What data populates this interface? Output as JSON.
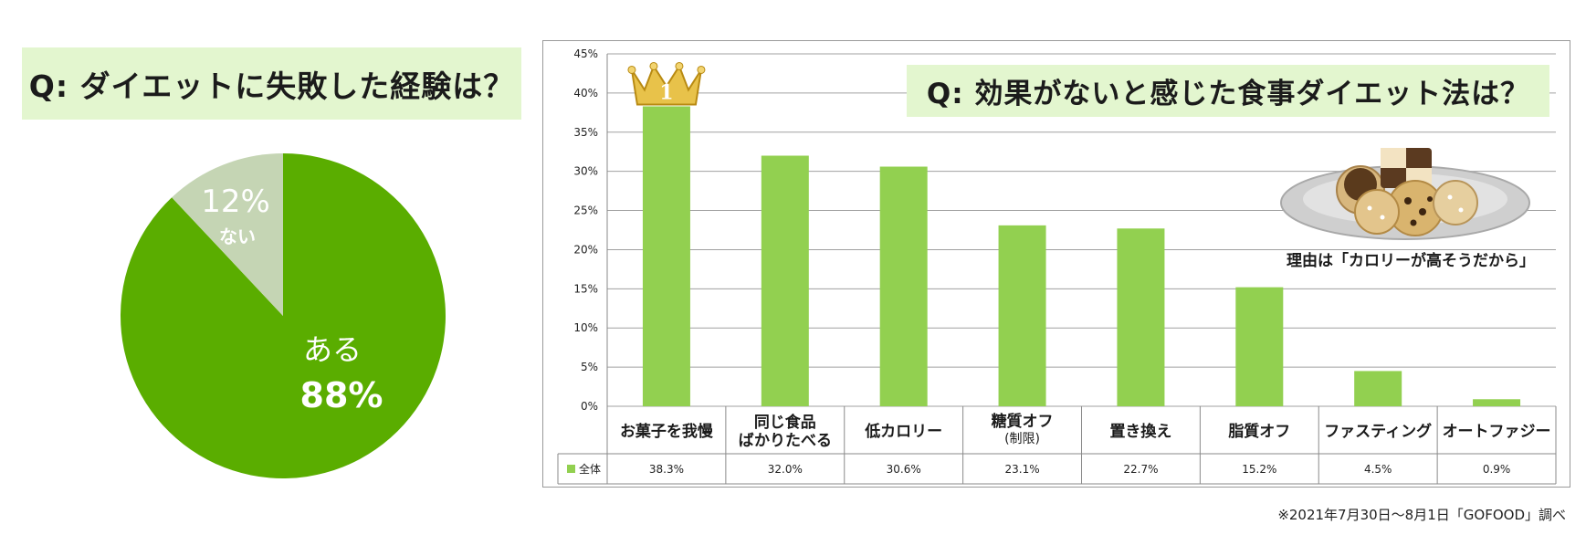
{
  "left_question": "Q: ダイエットに失敗した経験は？",
  "right_question": "Q: 効果がないと感じた食事ダイエット法は？",
  "reason": "理由は「カロリーが高そうだから」",
  "source_note": "※2021年7月30日～8月1日「GOFOOD」調べ",
  "rank_badge": "1",
  "colors": {
    "pie_main": "#5aad00",
    "pie_minor": "#c5d5b4",
    "bar": "#92d050",
    "q_bg": "#e3f6cf"
  },
  "chart_data": [
    {
      "type": "pie",
      "slices": [
        {
          "label": "ある",
          "value_text": "88%",
          "value": 88
        },
        {
          "label": "ない",
          "value_text": "12%",
          "value": 12
        }
      ]
    },
    {
      "type": "bar",
      "categories": [
        {
          "line1": "お菓子を我慢",
          "line2": "",
          "line3": ""
        },
        {
          "line1": "同じ食品",
          "line2": "ばかりたべる",
          "line3": ""
        },
        {
          "line1": "低カロリー",
          "line2": "",
          "line3": ""
        },
        {
          "line1": "糖質オフ",
          "line2": "",
          "line3": "(制限)"
        },
        {
          "line1": "置き換え",
          "line2": "",
          "line3": ""
        },
        {
          "line1": "脂質オフ",
          "line2": "",
          "line3": ""
        },
        {
          "line1": "ファスティング",
          "line2": "",
          "line3": ""
        },
        {
          "line1": "オートファジー",
          "line2": "",
          "line3": ""
        }
      ],
      "series": [
        {
          "name": "全体",
          "values": [
            38.3,
            32.0,
            30.6,
            23.1,
            22.7,
            15.2,
            4.5,
            0.9
          ],
          "labels": [
            "38.3%",
            "32.0%",
            "30.6%",
            "23.1%",
            "22.7%",
            "15.2%",
            "4.5%",
            "0.9%"
          ]
        }
      ],
      "ylim": [
        0,
        45
      ],
      "yticks": [
        "0%",
        "5%",
        "10%",
        "15%",
        "20%",
        "25%",
        "30%",
        "35%",
        "40%",
        "45%"
      ],
      "grid": true
    }
  ]
}
